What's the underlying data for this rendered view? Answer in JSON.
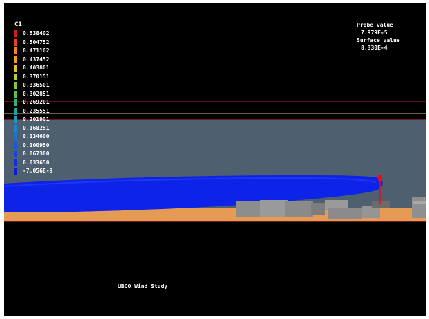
{
  "legend": {
    "title": "C1",
    "items": [
      {
        "label": "0.538402",
        "color": "#d7191c"
      },
      {
        "label": "0.504752",
        "color": "#e8461e"
      },
      {
        "label": "0.471102",
        "color": "#f0861a"
      },
      {
        "label": "0.437452",
        "color": "#f5a019"
      },
      {
        "label": "0.403801",
        "color": "#e6c21a"
      },
      {
        "label": "0.370151",
        "color": "#b8d02a"
      },
      {
        "label": "0.336501",
        "color": "#7fcb34"
      },
      {
        "label": "0.302851",
        "color": "#4dc44a"
      },
      {
        "label": "0.269201",
        "color": "#29b37a"
      },
      {
        "label": "0.235551",
        "color": "#1ea59e"
      },
      {
        "label": "0.201901",
        "color": "#1c97c6"
      },
      {
        "label": "0.168251",
        "color": "#1a86d8"
      },
      {
        "label": "0.134600",
        "color": "#1670e0"
      },
      {
        "label": "0.100950",
        "color": "#135ae2"
      },
      {
        "label": "0.067300",
        "color": "#1145e4"
      },
      {
        "label": "0.033650",
        "color": "#0f2fe3"
      },
      {
        "label": "-7.056E-9",
        "color": "#0d1bd8"
      }
    ]
  },
  "probe": {
    "probe_label": "Probe value",
    "probe_value": "7.979E-5",
    "surface_label": "Surface value",
    "surface_value": "8.330E-4"
  },
  "footer": {
    "caption": "UBCO Wind Study"
  },
  "colors": {
    "sky": "#4e606f",
    "ground": "#e59b54",
    "plume": "#0d24e8",
    "building": "#8e8e8e",
    "boundary_line": "#c0392b"
  }
}
